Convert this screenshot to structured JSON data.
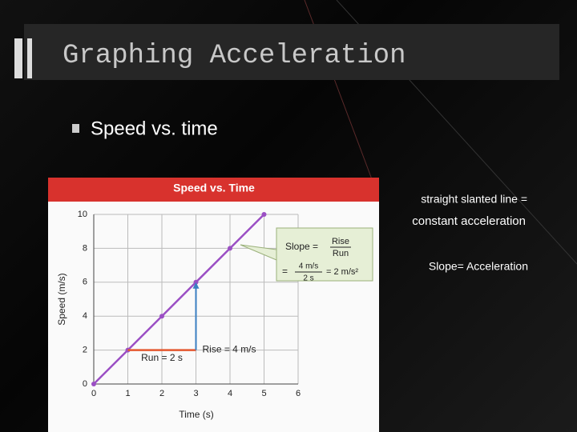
{
  "slide": {
    "title": "Graphing Acceleration",
    "bullet": "Speed vs. time",
    "notes": [
      "straight slanted line =",
      "constant acceleration",
      "Slope= Acceleration"
    ]
  },
  "chart_data": {
    "type": "line",
    "title": "Speed vs. Time",
    "x_label": "Time (s)",
    "y_label": "Speed (m/s)",
    "x": [
      0,
      1,
      2,
      3,
      4,
      5
    ],
    "series": [
      {
        "name": "Speed",
        "color": "#9b4fc4",
        "values": [
          0,
          2,
          4,
          6,
          8,
          10
        ]
      }
    ],
    "xlim": [
      0,
      6
    ],
    "ylim": [
      0,
      10
    ],
    "xticks": [
      0,
      1,
      2,
      3,
      4,
      5,
      6
    ],
    "yticks": [
      0,
      2,
      4,
      6,
      8,
      10
    ],
    "grid": true,
    "annotations": {
      "slope": "Slope =",
      "rise": "Rise",
      "run": "Run",
      "eq": "=",
      "num": "4 m/s",
      "den": "2 s",
      "result": "= 2 m/s²",
      "rise_label": "Rise = 4 m/s",
      "run_label": "Run = 2 s"
    }
  }
}
